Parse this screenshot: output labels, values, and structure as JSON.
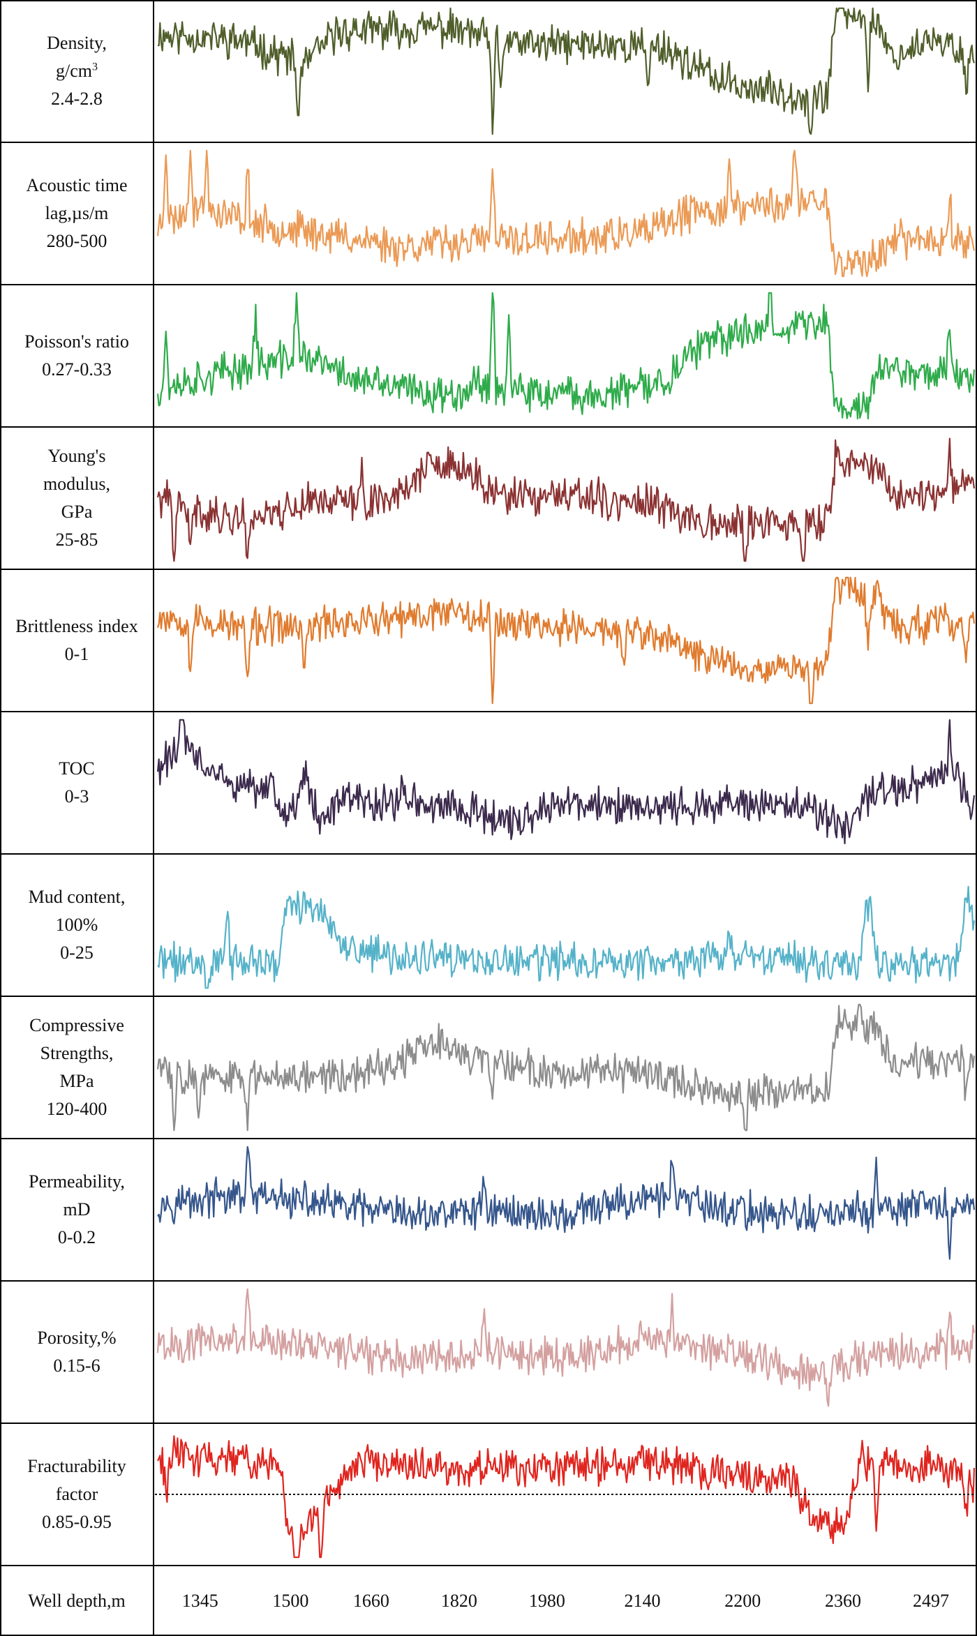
{
  "chart_data": {
    "type": "line",
    "title": "",
    "xlabel": "Well depth,m",
    "x_ticks": [
      "1345",
      "1500",
      "1660",
      "1820",
      "1980",
      "2140",
      "2200",
      "2360",
      "2497"
    ],
    "tracks": [
      {
        "key": "density",
        "label": [
          "Density,",
          "g/cm3",
          "2.4-2.8"
        ],
        "unit_sup": "3",
        "range": [
          2.4,
          2.8
        ],
        "color": "#4f5e2a",
        "seed": 11,
        "profile": [
          [
            0,
            0.78
          ],
          [
            0.1,
            0.74
          ],
          [
            0.18,
            0.55
          ],
          [
            0.22,
            0.8
          ],
          [
            0.35,
            0.83
          ],
          [
            0.45,
            0.7
          ],
          [
            0.55,
            0.7
          ],
          [
            0.62,
            0.68
          ],
          [
            0.68,
            0.45
          ],
          [
            0.74,
            0.35
          ],
          [
            0.82,
            0.3
          ],
          [
            0.83,
            0.95
          ],
          [
            0.88,
            0.9
          ],
          [
            0.9,
            0.6
          ],
          [
            0.94,
            0.72
          ],
          [
            1,
            0.65
          ]
        ],
        "spikes": [
          [
            0.172,
            -0.5
          ],
          [
            0.41,
            -0.8
          ],
          [
            0.42,
            -0.4
          ],
          [
            0.6,
            -0.3
          ],
          [
            0.8,
            -0.4
          ],
          [
            0.87,
            -0.5
          ],
          [
            0.99,
            -0.4
          ]
        ]
      },
      {
        "key": "acoustic",
        "label": [
          "Acoustic time",
          "lag,µs/m",
          "280-500"
        ],
        "range": [
          280,
          500
        ],
        "color": "#eb9a55",
        "seed": 23,
        "profile": [
          [
            0,
            0.4
          ],
          [
            0.05,
            0.55
          ],
          [
            0.12,
            0.42
          ],
          [
            0.2,
            0.35
          ],
          [
            0.3,
            0.25
          ],
          [
            0.4,
            0.3
          ],
          [
            0.5,
            0.3
          ],
          [
            0.6,
            0.35
          ],
          [
            0.65,
            0.5
          ],
          [
            0.72,
            0.55
          ],
          [
            0.82,
            0.6
          ],
          [
            0.83,
            0.1
          ],
          [
            0.88,
            0.15
          ],
          [
            0.9,
            0.3
          ],
          [
            1,
            0.3
          ]
        ],
        "spikes": [
          [
            0.01,
            0.6
          ],
          [
            0.04,
            0.6
          ],
          [
            0.06,
            0.4
          ],
          [
            0.11,
            0.4
          ],
          [
            0.41,
            0.5
          ],
          [
            0.7,
            0.35
          ],
          [
            0.78,
            0.45
          ],
          [
            0.97,
            0.4
          ]
        ]
      },
      {
        "key": "poisson",
        "label": [
          "Poisson's ratio",
          "0.27-0.33"
        ],
        "range": [
          0.27,
          0.33
        ],
        "color": "#2eab4a",
        "seed": 37,
        "profile": [
          [
            0,
            0.25
          ],
          [
            0.1,
            0.4
          ],
          [
            0.18,
            0.5
          ],
          [
            0.25,
            0.3
          ],
          [
            0.35,
            0.2
          ],
          [
            0.4,
            0.3
          ],
          [
            0.45,
            0.2
          ],
          [
            0.55,
            0.2
          ],
          [
            0.62,
            0.3
          ],
          [
            0.66,
            0.55
          ],
          [
            0.72,
            0.7
          ],
          [
            0.82,
            0.75
          ],
          [
            0.83,
            0.1
          ],
          [
            0.87,
            0.12
          ],
          [
            0.88,
            0.4
          ],
          [
            1,
            0.35
          ]
        ],
        "spikes": [
          [
            0.01,
            0.4
          ],
          [
            0.12,
            0.4
          ],
          [
            0.17,
            0.5
          ],
          [
            0.41,
            0.8
          ],
          [
            0.43,
            0.5
          ],
          [
            0.75,
            0.5
          ],
          [
            0.97,
            0.45
          ]
        ]
      },
      {
        "key": "young",
        "label": [
          "Young's",
          "modulus,",
          "GPa",
          "25-85"
        ],
        "range": [
          25,
          85
        ],
        "color": "#8b3232",
        "seed": 41,
        "profile": [
          [
            0,
            0.5
          ],
          [
            0.08,
            0.35
          ],
          [
            0.15,
            0.4
          ],
          [
            0.2,
            0.5
          ],
          [
            0.25,
            0.45
          ],
          [
            0.3,
            0.55
          ],
          [
            0.33,
            0.75
          ],
          [
            0.38,
            0.7
          ],
          [
            0.42,
            0.5
          ],
          [
            0.5,
            0.5
          ],
          [
            0.6,
            0.45
          ],
          [
            0.66,
            0.35
          ],
          [
            0.7,
            0.3
          ],
          [
            0.78,
            0.3
          ],
          [
            0.82,
            0.3
          ],
          [
            0.83,
            0.8
          ],
          [
            0.88,
            0.75
          ],
          [
            0.9,
            0.5
          ],
          [
            1,
            0.6
          ]
        ],
        "spikes": [
          [
            0.02,
            -0.5
          ],
          [
            0.04,
            -0.4
          ],
          [
            0.11,
            -0.4
          ],
          [
            0.25,
            0.3
          ],
          [
            0.54,
            0.2
          ],
          [
            0.72,
            -0.4
          ],
          [
            0.79,
            -0.4
          ],
          [
            0.97,
            0.3
          ]
        ]
      },
      {
        "key": "brittleness",
        "label": [
          "Brittleness index",
          "0-1"
        ],
        "range": [
          0,
          1
        ],
        "color": "#e07b2e",
        "seed": 53,
        "profile": [
          [
            0,
            0.7
          ],
          [
            0.1,
            0.6
          ],
          [
            0.18,
            0.6
          ],
          [
            0.22,
            0.65
          ],
          [
            0.3,
            0.65
          ],
          [
            0.36,
            0.75
          ],
          [
            0.42,
            0.65
          ],
          [
            0.5,
            0.6
          ],
          [
            0.6,
            0.55
          ],
          [
            0.66,
            0.4
          ],
          [
            0.72,
            0.3
          ],
          [
            0.82,
            0.3
          ],
          [
            0.83,
            0.95
          ],
          [
            0.88,
            0.85
          ],
          [
            0.9,
            0.6
          ],
          [
            1,
            0.65
          ]
        ],
        "spikes": [
          [
            0.04,
            -0.4
          ],
          [
            0.11,
            -0.5
          ],
          [
            0.18,
            -0.4
          ],
          [
            0.41,
            -0.7
          ],
          [
            0.57,
            -0.3
          ],
          [
            0.8,
            -0.4
          ],
          [
            0.87,
            -0.4
          ],
          [
            0.99,
            -0.4
          ]
        ]
      },
      {
        "key": "toc",
        "label": [
          "TOC",
          "0-3"
        ],
        "range": [
          0,
          3
        ],
        "color": "#3c2a4d",
        "seed": 61,
        "profile": [
          [
            0,
            0.6
          ],
          [
            0.03,
            0.8
          ],
          [
            0.06,
            0.6
          ],
          [
            0.1,
            0.45
          ],
          [
            0.14,
            0.45
          ],
          [
            0.16,
            0.2
          ],
          [
            0.18,
            0.55
          ],
          [
            0.2,
            0.2
          ],
          [
            0.22,
            0.35
          ],
          [
            0.3,
            0.35
          ],
          [
            0.38,
            0.3
          ],
          [
            0.44,
            0.2
          ],
          [
            0.5,
            0.35
          ],
          [
            0.6,
            0.3
          ],
          [
            0.7,
            0.35
          ],
          [
            0.8,
            0.3
          ],
          [
            0.84,
            0.15
          ],
          [
            0.88,
            0.45
          ],
          [
            0.92,
            0.45
          ],
          [
            0.97,
            0.6
          ],
          [
            1,
            0.35
          ]
        ],
        "spikes": [
          [
            0.03,
            0.6
          ],
          [
            0.3,
            0.2
          ],
          [
            0.75,
            0.2
          ],
          [
            0.97,
            0.3
          ]
        ]
      },
      {
        "key": "mud",
        "label": [
          "Mud content,",
          "100%",
          "0-25"
        ],
        "range": [
          0,
          25
        ],
        "color": "#55b2c9",
        "seed": 71,
        "profile": [
          [
            0,
            0.22
          ],
          [
            0.08,
            0.22
          ],
          [
            0.085,
            0.6
          ],
          [
            0.09,
            0.22
          ],
          [
            0.15,
            0.2
          ],
          [
            0.155,
            0.65
          ],
          [
            0.2,
            0.65
          ],
          [
            0.22,
            0.35
          ],
          [
            0.28,
            0.25
          ],
          [
            0.4,
            0.22
          ],
          [
            0.6,
            0.22
          ],
          [
            0.7,
            0.24
          ],
          [
            0.86,
            0.22
          ],
          [
            0.87,
            0.85
          ],
          [
            0.88,
            0.22
          ],
          [
            0.98,
            0.22
          ],
          [
            0.99,
            0.75
          ],
          [
            1,
            0.5
          ]
        ],
        "spikes": [
          [
            0.06,
            -0.3
          ],
          [
            0.7,
            0.2
          ],
          [
            0.87,
            -0.2
          ]
        ]
      },
      {
        "key": "compressive",
        "label": [
          "Compressive",
          "Strengths,",
          "MPa",
          "120-400"
        ],
        "range": [
          120,
          400
        ],
        "color": "#8c8c8c",
        "seed": 83,
        "profile": [
          [
            0,
            0.5
          ],
          [
            0.08,
            0.4
          ],
          [
            0.14,
            0.45
          ],
          [
            0.2,
            0.45
          ],
          [
            0.25,
            0.45
          ],
          [
            0.3,
            0.55
          ],
          [
            0.34,
            0.7
          ],
          [
            0.4,
            0.55
          ],
          [
            0.5,
            0.45
          ],
          [
            0.6,
            0.45
          ],
          [
            0.66,
            0.35
          ],
          [
            0.7,
            0.3
          ],
          [
            0.82,
            0.3
          ],
          [
            0.83,
            0.85
          ],
          [
            0.88,
            0.8
          ],
          [
            0.9,
            0.55
          ],
          [
            1,
            0.55
          ]
        ],
        "spikes": [
          [
            0.02,
            -0.5
          ],
          [
            0.05,
            -0.4
          ],
          [
            0.11,
            -0.4
          ],
          [
            0.41,
            -0.4
          ],
          [
            0.72,
            -0.4
          ],
          [
            0.86,
            0.3
          ],
          [
            0.99,
            -0.3
          ]
        ]
      },
      {
        "key": "permeability",
        "label": [
          "Permeability,",
          "mD",
          "0-0.2"
        ],
        "range": [
          0,
          0.2
        ],
        "color": "#35568c",
        "seed": 97,
        "profile": [
          [
            0,
            0.55
          ],
          [
            0.1,
            0.6
          ],
          [
            0.2,
            0.55
          ],
          [
            0.3,
            0.45
          ],
          [
            0.4,
            0.5
          ],
          [
            0.5,
            0.45
          ],
          [
            0.6,
            0.6
          ],
          [
            0.7,
            0.5
          ],
          [
            0.8,
            0.45
          ],
          [
            0.9,
            0.5
          ],
          [
            1,
            0.55
          ]
        ],
        "spikes": [
          [
            0.11,
            0.4
          ],
          [
            0.4,
            0.3
          ],
          [
            0.63,
            0.4
          ],
          [
            0.88,
            0.3
          ],
          [
            0.97,
            -0.4
          ]
        ]
      },
      {
        "key": "porosity",
        "label": [
          "Porosity,%",
          "0.15-6"
        ],
        "range": [
          0.15,
          6
        ],
        "color": "#d4a0a0",
        "seed": 101,
        "profile": [
          [
            0,
            0.55
          ],
          [
            0.1,
            0.6
          ],
          [
            0.2,
            0.55
          ],
          [
            0.3,
            0.45
          ],
          [
            0.4,
            0.5
          ],
          [
            0.5,
            0.45
          ],
          [
            0.6,
            0.6
          ],
          [
            0.7,
            0.5
          ],
          [
            0.8,
            0.35
          ],
          [
            0.9,
            0.5
          ],
          [
            1,
            0.55
          ]
        ],
        "spikes": [
          [
            0.11,
            0.4
          ],
          [
            0.4,
            0.3
          ],
          [
            0.63,
            0.35
          ],
          [
            0.82,
            -0.3
          ],
          [
            0.97,
            0.3
          ]
        ]
      },
      {
        "key": "fracturability",
        "label": [
          "Fracturability",
          "factor",
          "0.85-0.95"
        ],
        "range": [
          0.85,
          0.95
        ],
        "color": "#e0251f",
        "seed": 113,
        "threshold": 0.5,
        "profile": [
          [
            0,
            0.8
          ],
          [
            0.1,
            0.78
          ],
          [
            0.15,
            0.7
          ],
          [
            0.16,
            0.2
          ],
          [
            0.19,
            0.3
          ],
          [
            0.21,
            0.5
          ],
          [
            0.25,
            0.75
          ],
          [
            0.35,
            0.7
          ],
          [
            0.42,
            0.7
          ],
          [
            0.5,
            0.7
          ],
          [
            0.6,
            0.75
          ],
          [
            0.7,
            0.65
          ],
          [
            0.78,
            0.6
          ],
          [
            0.8,
            0.3
          ],
          [
            0.84,
            0.25
          ],
          [
            0.86,
            0.75
          ],
          [
            0.9,
            0.7
          ],
          [
            0.95,
            0.75
          ],
          [
            1,
            0.6
          ]
        ],
        "spikes": [
          [
            0.01,
            -0.3
          ],
          [
            0.17,
            -0.6
          ],
          [
            0.2,
            -0.5
          ],
          [
            0.88,
            -0.5
          ],
          [
            0.99,
            -0.3
          ]
        ]
      }
    ]
  }
}
